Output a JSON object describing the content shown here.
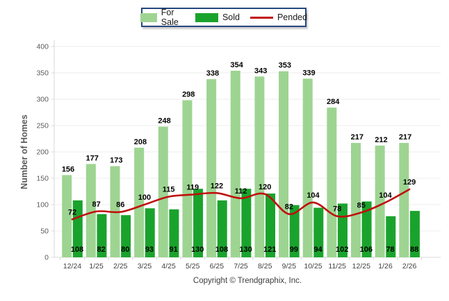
{
  "chart_data": {
    "type": "bar",
    "title": "",
    "categories": [
      "12/24",
      "1/25",
      "2/25",
      "3/25",
      "4/25",
      "5/25",
      "6/25",
      "7/25",
      "8/25",
      "9/25",
      "10/25",
      "11/25",
      "12/25",
      "1/26",
      "2/26"
    ],
    "series": [
      {
        "name": "For Sale",
        "type": "bar",
        "color": "#9ed492",
        "values": [
          156,
          177,
          173,
          208,
          248,
          298,
          338,
          354,
          343,
          353,
          339,
          284,
          217,
          212,
          217
        ]
      },
      {
        "name": "Sold",
        "type": "bar",
        "color": "#1aa32c",
        "values": [
          108,
          82,
          80,
          93,
          91,
          130,
          108,
          130,
          121,
          99,
          94,
          102,
          106,
          78,
          88
        ]
      },
      {
        "name": "Pended",
        "type": "line",
        "color": "#c00d0d",
        "values": [
          72,
          87,
          86,
          100,
          115,
          119,
          122,
          112,
          120,
          82,
          104,
          78,
          85,
          104,
          129
        ]
      }
    ],
    "xlabel": "",
    "ylabel": "Number of Homes",
    "ylim": [
      0,
      400
    ],
    "yticks": [
      0,
      50,
      100,
      150,
      200,
      250,
      300,
      350,
      400
    ],
    "grid": true,
    "legend_position": "top-center"
  },
  "colors": {
    "for_sale": "#9ed492",
    "sold": "#1aa32c",
    "pended": "#c00d0d",
    "legend_border": "#24477e",
    "gridline": "#ececec",
    "axis": "#d9d9d9",
    "tick_label": "#595959",
    "data_label": "#000000"
  },
  "footer": {
    "copyright": "Copyright © Trendgraphix, Inc."
  }
}
